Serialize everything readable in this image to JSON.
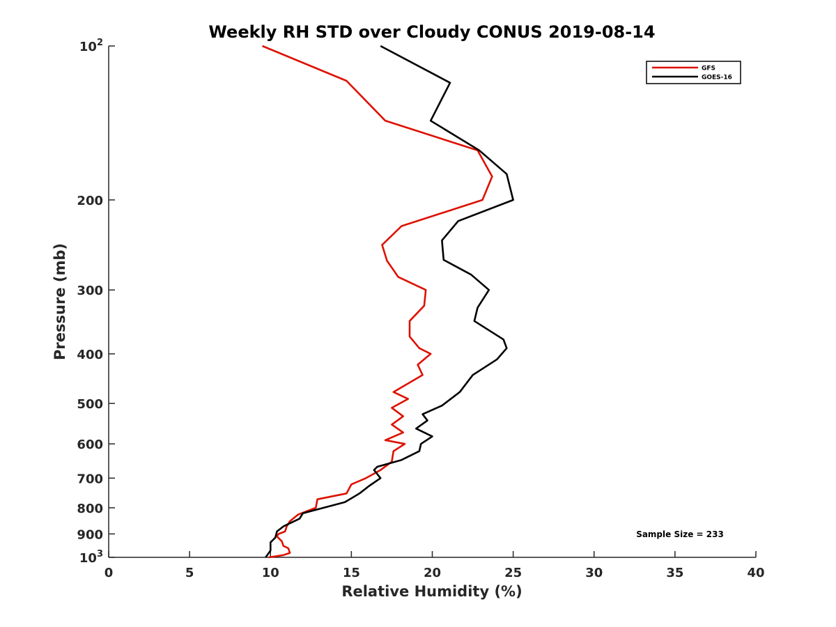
{
  "chart_data": {
    "type": "line",
    "title": "Weekly RH STD over Cloudy CONUS 2019-08-14",
    "xlabel": "Relative Humidity (%)",
    "ylabel": "Pressure (mb)",
    "xlim": [
      0,
      40
    ],
    "ylim": [
      100,
      1000
    ],
    "y_scale": "log",
    "y_reversed": true,
    "x_ticks": [
      0,
      5,
      10,
      15,
      20,
      25,
      30,
      35,
      40
    ],
    "x_tick_labels": [
      "0",
      "5",
      "10",
      "15",
      "20",
      "25",
      "30",
      "35",
      "40"
    ],
    "y_ticks": [
      100,
      200,
      300,
      400,
      500,
      600,
      700,
      800,
      900,
      1000
    ],
    "y_tick_labels": [
      {
        "base": "10",
        "sup": "2"
      },
      {
        "base": "200"
      },
      {
        "base": "300"
      },
      {
        "base": "400"
      },
      {
        "base": "500"
      },
      {
        "base": "600"
      },
      {
        "base": "700"
      },
      {
        "base": "800"
      },
      {
        "base": "900"
      },
      {
        "base": "10",
        "sup": "3"
      }
    ],
    "grid": false,
    "legend_position": "top-right",
    "annotation": "Sample Size = 233",
    "series": [
      {
        "name": "GFS",
        "color": "#dd1100",
        "x": [
          9.5,
          14.7,
          17.1,
          22.8,
          23.7,
          23.1,
          18.1,
          16.9,
          17.2,
          17.9,
          19.6,
          19.5,
          18.6,
          18.6,
          19.2,
          19.9,
          19.1,
          19.4,
          17.6,
          18.5,
          17.5,
          18.2,
          17.5,
          18.2,
          17.1,
          18.3,
          17.6,
          17.5,
          16.8,
          15.9,
          15.0,
          14.7,
          12.9,
          12.8,
          11.7,
          11.2,
          11.0,
          10.9,
          10.5,
          10.4,
          10.7,
          10.8,
          11.1,
          11.2,
          10.8,
          9.9
        ],
        "y": [
          100,
          117,
          140,
          160,
          180,
          200,
          225,
          245,
          263,
          283,
          300,
          322,
          345,
          370,
          390,
          400,
          420,
          440,
          475,
          490,
          510,
          530,
          550,
          570,
          590,
          600,
          620,
          650,
          675,
          700,
          720,
          750,
          770,
          800,
          825,
          850,
          870,
          890,
          900,
          910,
          930,
          950,
          960,
          980,
          990,
          1000
        ]
      },
      {
        "name": "GOES-16",
        "color": "#000000",
        "x": [
          16.8,
          21.1,
          19.9,
          22.9,
          24.6,
          25.0,
          21.6,
          20.6,
          20.7,
          22.4,
          23.5,
          22.8,
          22.6,
          24.4,
          24.6,
          24.0,
          22.5,
          21.7,
          20.6,
          19.4,
          19.7,
          19.0,
          20.0,
          19.3,
          19.2,
          18.1,
          16.6,
          16.4,
          16.8,
          16.1,
          15.5,
          14.6,
          12.0,
          11.8,
          10.8,
          10.4,
          10.3,
          10.0,
          10.0,
          9.7
        ],
        "y": [
          100,
          118,
          140,
          160,
          178,
          200,
          220,
          240,
          262,
          280,
          300,
          325,
          345,
          375,
          390,
          410,
          440,
          475,
          505,
          525,
          540,
          560,
          580,
          600,
          620,
          645,
          665,
          675,
          700,
          725,
          750,
          780,
          820,
          840,
          870,
          890,
          915,
          935,
          970,
          1000
        ]
      }
    ]
  }
}
